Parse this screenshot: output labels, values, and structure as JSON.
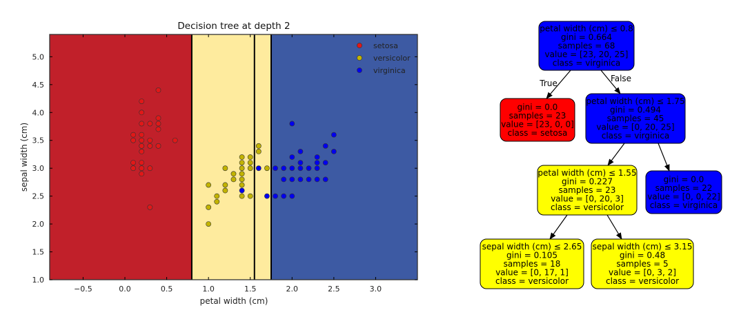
{
  "chart_data": [
    {
      "type": "scatter",
      "title": "Decision tree at depth 2",
      "xlabel": "petal width (cm)",
      "ylabel": "sepal width (cm)",
      "xlim": [
        -0.9,
        3.5
      ],
      "ylim": [
        1.0,
        5.4
      ],
      "xticks": [
        "−0.5",
        "0.0",
        "0.5",
        "1.0",
        "1.5",
        "2.0",
        "2.5",
        "3.0"
      ],
      "xtick_values": [
        -0.5,
        0.0,
        0.5,
        1.0,
        1.5,
        2.0,
        2.5,
        3.0
      ],
      "yticks": [
        "1.0",
        "1.5",
        "2.0",
        "2.5",
        "3.0",
        "3.5",
        "4.0",
        "4.5",
        "5.0"
      ],
      "ytick_values": [
        1.0,
        1.5,
        2.0,
        2.5,
        3.0,
        3.5,
        4.0,
        4.5,
        5.0
      ],
      "grid": false,
      "legend_position": "top-right",
      "regions": [
        {
          "from": -0.9,
          "to": 0.8,
          "class": "setosa",
          "color": "#c1202a"
        },
        {
          "from": 0.8,
          "to": 1.75,
          "class": "versicolor",
          "color": "#feeb9e"
        },
        {
          "from": 1.75,
          "to": 3.5,
          "class": "virginica",
          "color": "#3d5aa3"
        }
      ],
      "split_lines": [
        0.8,
        1.55,
        1.75
      ],
      "series": [
        {
          "name": "setosa",
          "color": "#e01818",
          "points": [
            [
              0.1,
              3.1
            ],
            [
              0.1,
              3.0
            ],
            [
              0.1,
              3.6
            ],
            [
              0.1,
              3.5
            ],
            [
              0.2,
              4.2
            ],
            [
              0.2,
              4.0
            ],
            [
              0.2,
              3.8
            ],
            [
              0.2,
              3.6
            ],
            [
              0.2,
              3.5
            ],
            [
              0.2,
              3.4
            ],
            [
              0.2,
              3.3
            ],
            [
              0.2,
              3.1
            ],
            [
              0.2,
              3.0
            ],
            [
              0.2,
              2.9
            ],
            [
              0.3,
              3.8
            ],
            [
              0.3,
              3.5
            ],
            [
              0.3,
              3.4
            ],
            [
              0.3,
              3.0
            ],
            [
              0.3,
              2.3
            ],
            [
              0.4,
              4.4
            ],
            [
              0.4,
              3.9
            ],
            [
              0.4,
              3.8
            ],
            [
              0.4,
              3.7
            ],
            [
              0.4,
              3.4
            ],
            [
              0.6,
              3.5
            ]
          ]
        },
        {
          "name": "versicolor",
          "color": "#c2b300",
          "points": [
            [
              1.0,
              2.0
            ],
            [
              1.0,
              2.3
            ],
            [
              1.0,
              2.7
            ],
            [
              1.1,
              2.4
            ],
            [
              1.1,
              2.5
            ],
            [
              1.2,
              2.6
            ],
            [
              1.2,
              2.7
            ],
            [
              1.2,
              3.0
            ],
            [
              1.3,
              2.8
            ],
            [
              1.3,
              2.9
            ],
            [
              1.4,
              2.5
            ],
            [
              1.4,
              2.7
            ],
            [
              1.4,
              2.8
            ],
            [
              1.4,
              2.9
            ],
            [
              1.4,
              3.0
            ],
            [
              1.4,
              3.1
            ],
            [
              1.4,
              3.2
            ],
            [
              1.5,
              2.5
            ],
            [
              1.5,
              3.0
            ],
            [
              1.5,
              3.1
            ],
            [
              1.5,
              3.2
            ],
            [
              1.6,
              3.3
            ],
            [
              1.6,
              3.4
            ],
            [
              1.7,
              3.0
            ]
          ]
        },
        {
          "name": "virginica",
          "color": "#0000ee",
          "points": [
            [
              1.4,
              2.6
            ],
            [
              1.6,
              3.0
            ],
            [
              1.7,
              2.5
            ],
            [
              1.8,
              2.5
            ],
            [
              1.8,
              3.0
            ],
            [
              1.9,
              2.5
            ],
            [
              1.9,
              2.8
            ],
            [
              1.9,
              3.0
            ],
            [
              2.0,
              2.5
            ],
            [
              2.0,
              2.8
            ],
            [
              2.0,
              3.0
            ],
            [
              2.0,
              3.2
            ],
            [
              2.0,
              3.8
            ],
            [
              2.1,
              2.8
            ],
            [
              2.1,
              3.0
            ],
            [
              2.1,
              3.1
            ],
            [
              2.1,
              3.3
            ],
            [
              2.2,
              2.8
            ],
            [
              2.2,
              3.0
            ],
            [
              2.3,
              2.8
            ],
            [
              2.3,
              3.0
            ],
            [
              2.3,
              3.1
            ],
            [
              2.3,
              3.2
            ],
            [
              2.4,
              2.8
            ],
            [
              2.4,
              3.1
            ],
            [
              2.4,
              3.4
            ],
            [
              2.5,
              3.3
            ],
            [
              2.5,
              3.6
            ]
          ]
        }
      ]
    },
    {
      "type": "tree",
      "nodes": [
        {
          "id": "n0",
          "color": "#0000ff",
          "lines": [
            "petal width (cm) ≤ 0.8",
            "gini = 0.664",
            "samples = 68",
            "value = [23, 20, 25]",
            "class = virginica"
          ]
        },
        {
          "id": "n1",
          "color": "#ff0000",
          "lines": [
            "gini = 0.0",
            "samples = 23",
            "value = [23, 0, 0]",
            "class = setosa"
          ]
        },
        {
          "id": "n2",
          "color": "#0000ff",
          "lines": [
            "petal width (cm) ≤ 1.75",
            "gini = 0.494",
            "samples = 45",
            "value = [0, 20, 25]",
            "class = virginica"
          ]
        },
        {
          "id": "n3",
          "color": "#ffff00",
          "lines": [
            "petal width (cm) ≤ 1.55",
            "gini = 0.227",
            "samples = 23",
            "value = [0, 20, 3]",
            "class = versicolor"
          ]
        },
        {
          "id": "n4",
          "color": "#0000ff",
          "lines": [
            "gini = 0.0",
            "samples = 22",
            "value = [0, 0, 22]",
            "class = virginica"
          ]
        },
        {
          "id": "n5",
          "color": "#ffff00",
          "lines": [
            "sepal width (cm) ≤ 2.65",
            "gini = 0.105",
            "samples = 18",
            "value = [0, 17, 1]",
            "class = versicolor"
          ]
        },
        {
          "id": "n6",
          "color": "#ffff00",
          "lines": [
            "sepal width (cm) ≤ 3.15",
            "gini = 0.48",
            "samples = 5",
            "value = [0, 3, 2]",
            "class = versicolor"
          ]
        }
      ],
      "edges": [
        {
          "from": "n0",
          "to": "n1",
          "label": "True"
        },
        {
          "from": "n0",
          "to": "n2",
          "label": "False"
        },
        {
          "from": "n2",
          "to": "n3",
          "label": ""
        },
        {
          "from": "n2",
          "to": "n4",
          "label": ""
        },
        {
          "from": "n3",
          "to": "n5",
          "label": ""
        },
        {
          "from": "n3",
          "to": "n6",
          "label": ""
        }
      ]
    }
  ]
}
